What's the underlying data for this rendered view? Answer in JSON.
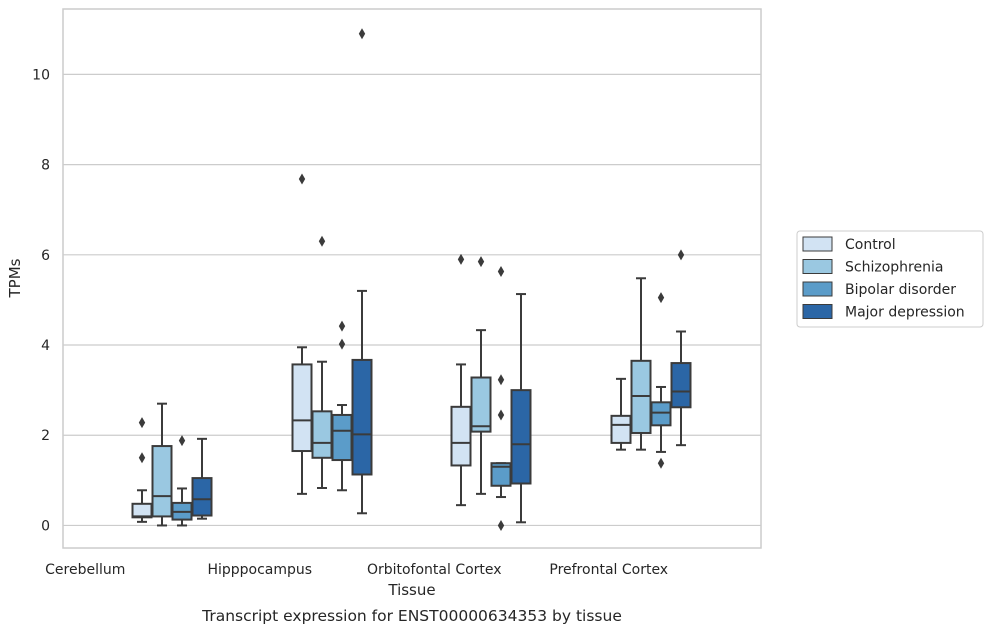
{
  "caption": "Transcript expression for ENST00000634353 by tissue",
  "chart_data": {
    "type": "box",
    "xlabel": "Tissue",
    "ylabel": "TPMs",
    "ylim": [
      -0.5,
      11.45
    ],
    "yticks": [
      0,
      2,
      4,
      6,
      8,
      10
    ],
    "grid": true,
    "legend_position": "right",
    "categories": [
      "Cerebellum",
      "Hipppocampus",
      "Orbitofontal Cortex",
      "Prefrontal Cortex"
    ],
    "series": [
      {
        "name": "Control",
        "color": "#d2e3f3",
        "boxes": [
          {
            "whislo": 0.08,
            "q1": 0.18,
            "med": 0.2,
            "q3": 0.48,
            "whishi": 0.78,
            "fliers": [
              2.28,
              1.5
            ]
          },
          {
            "whislo": 0.7,
            "q1": 1.65,
            "med": 2.33,
            "q3": 3.57,
            "whishi": 3.95,
            "fliers": [
              7.68
            ]
          },
          {
            "whislo": 0.45,
            "q1": 1.33,
            "med": 1.83,
            "q3": 2.63,
            "whishi": 3.57,
            "fliers": [
              5.9
            ]
          },
          {
            "whislo": 1.68,
            "q1": 1.83,
            "med": 2.23,
            "q3": 2.43,
            "whishi": 3.25,
            "fliers": []
          }
        ]
      },
      {
        "name": "Schizophrenia",
        "color": "#9ac8e1",
        "boxes": [
          {
            "whislo": 0.0,
            "q1": 0.2,
            "med": 0.65,
            "q3": 1.76,
            "whishi": 2.7,
            "fliers": []
          },
          {
            "whislo": 0.83,
            "q1": 1.5,
            "med": 1.83,
            "q3": 2.53,
            "whishi": 3.63,
            "fliers": [
              6.3
            ]
          },
          {
            "whislo": 0.7,
            "q1": 2.08,
            "med": 2.2,
            "q3": 3.28,
            "whishi": 4.33,
            "fliers": [
              5.85
            ]
          },
          {
            "whislo": 1.68,
            "q1": 2.05,
            "med": 2.87,
            "q3": 3.65,
            "whishi": 5.48,
            "fliers": []
          }
        ]
      },
      {
        "name": "Bipolar disorder",
        "color": "#5b9cc9",
        "boxes": [
          {
            "whislo": 0.0,
            "q1": 0.13,
            "med": 0.3,
            "q3": 0.5,
            "whishi": 0.82,
            "fliers": [
              1.88
            ]
          },
          {
            "whislo": 0.78,
            "q1": 1.45,
            "med": 2.1,
            "q3": 2.45,
            "whishi": 2.67,
            "fliers": [
              4.42,
              4.02
            ]
          },
          {
            "whislo": 0.63,
            "q1": 0.88,
            "med": 1.3,
            "q3": 1.38,
            "whishi": 1.38,
            "fliers": [
              5.63,
              3.23,
              2.45,
              0.0
            ]
          },
          {
            "whislo": 1.63,
            "q1": 2.22,
            "med": 2.5,
            "q3": 2.73,
            "whishi": 3.07,
            "fliers": [
              5.05,
              1.38
            ]
          }
        ]
      },
      {
        "name": "Major depression",
        "color": "#2b66a6",
        "boxes": [
          {
            "whislo": 0.15,
            "q1": 0.22,
            "med": 0.58,
            "q3": 1.05,
            "whishi": 1.92,
            "fliers": []
          },
          {
            "whislo": 0.27,
            "q1": 1.13,
            "med": 2.02,
            "q3": 3.67,
            "whishi": 5.2,
            "fliers": [
              10.9
            ]
          },
          {
            "whislo": 0.07,
            "q1": 0.93,
            "med": 1.8,
            "q3": 3.0,
            "whishi": 5.13,
            "fliers": []
          },
          {
            "whislo": 1.78,
            "q1": 2.62,
            "med": 2.97,
            "q3": 3.6,
            "whishi": 4.3,
            "fliers": [
              6.0
            ]
          }
        ]
      }
    ]
  }
}
